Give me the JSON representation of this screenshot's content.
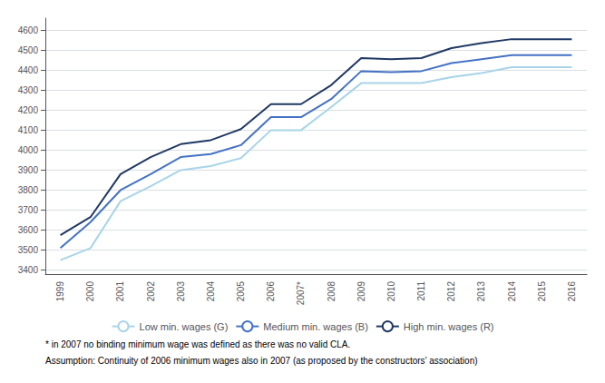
{
  "chart_data": {
    "type": "line",
    "categories": [
      "1999",
      "2000",
      "2001",
      "2002",
      "2003",
      "2004",
      "2005",
      "2006",
      "2007*",
      "2008",
      "2009",
      "2010",
      "2011",
      "2012",
      "2013",
      "2014",
      "2015",
      "2016"
    ],
    "series": [
      {
        "name": "Low min. wages (G)",
        "color": "#a8d4e8",
        "values": [
          3450,
          3510,
          3745,
          3820,
          3900,
          3920,
          3960,
          4100,
          4100,
          4215,
          4335,
          4335,
          4335,
          4365,
          4385,
          4415,
          4415,
          4415
        ]
      },
      {
        "name": "Medium min. wages (B)",
        "color": "#4472c4",
        "values": [
          3510,
          3640,
          3800,
          3880,
          3965,
          3980,
          4025,
          4165,
          4165,
          4255,
          4395,
          4390,
          4395,
          4435,
          4455,
          4475,
          4475,
          4475
        ]
      },
      {
        "name": "High min. wages (R)",
        "color": "#1f3864",
        "values": [
          3575,
          3665,
          3880,
          3965,
          4030,
          4050,
          4105,
          4230,
          4230,
          4325,
          4460,
          4455,
          4460,
          4510,
          4535,
          4555,
          4555,
          4555
        ]
      }
    ],
    "ylim": [
      3380,
      4660
    ],
    "yticks": [
      3400,
      3500,
      3600,
      3700,
      3800,
      3900,
      4000,
      4100,
      4200,
      4300,
      4400,
      4500,
      4600
    ],
    "grid": true,
    "legend": "bottom",
    "annotations": [
      "* in 2007 no binding minimum wage was defined as there was no valid CLA.",
      "Assumption: Continuity of 2006 minimum wages also in 2007 (as proposed by the constructors’ association)"
    ]
  }
}
